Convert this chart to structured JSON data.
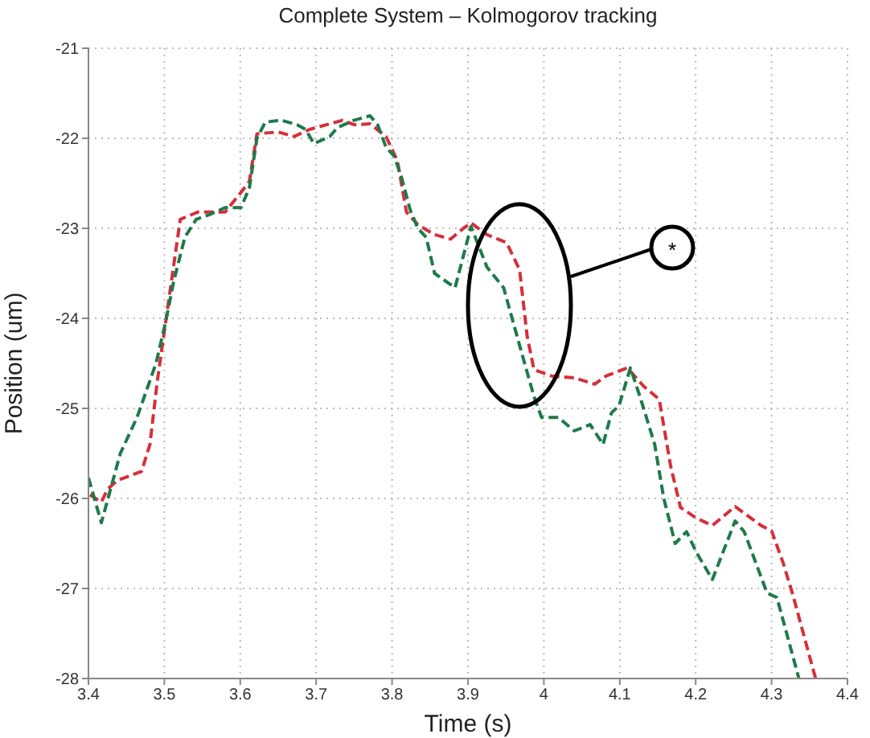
{
  "chart_data": {
    "type": "line",
    "title": "Complete System – Kolmogorov tracking",
    "xlabel": "Time (s)",
    "ylabel": "Position (um)",
    "xlim": [
      3.4,
      4.4
    ],
    "xticks": [
      3.4,
      3.5,
      3.6,
      3.7,
      3.8,
      3.9,
      4,
      4.1,
      4.2,
      4.3,
      4.4
    ],
    "ylim": [
      -28,
      -21
    ],
    "yticks": [
      -28,
      -27,
      -26,
      -25,
      -24,
      -23,
      -22,
      -21
    ],
    "grid": true,
    "line_style": "dashed",
    "marker": "none",
    "annotations": [
      "*"
    ],
    "series": [
      {
        "color": "#d62f3a",
        "x": [
          3.402,
          3.417,
          3.425,
          3.438,
          3.47,
          3.481,
          3.491,
          3.51,
          3.521,
          3.544,
          3.58,
          3.601,
          3.612,
          3.622,
          3.65,
          3.671,
          3.692,
          3.735,
          3.75,
          3.771,
          3.792,
          3.807,
          3.819,
          3.834,
          3.856,
          3.877,
          3.894,
          3.904,
          3.925,
          3.951,
          3.968,
          3.978,
          3.987,
          4.01,
          4.04,
          4.067,
          4.082,
          4.11,
          4.131,
          4.152,
          4.167,
          4.18,
          4.201,
          4.222,
          4.252,
          4.286,
          4.3,
          4.315,
          4.328,
          4.347,
          4.358
        ],
        "values": [
          -25.96,
          -26.04,
          -25.9,
          -25.8,
          -25.7,
          -25.4,
          -24.68,
          -23.55,
          -22.9,
          -22.82,
          -22.82,
          -22.6,
          -22.48,
          -21.95,
          -21.93,
          -21.98,
          -21.9,
          -21.8,
          -21.85,
          -21.84,
          -21.98,
          -22.25,
          -22.82,
          -22.96,
          -23.07,
          -23.12,
          -23.0,
          -22.94,
          -23.07,
          -23.16,
          -23.46,
          -24.2,
          -24.57,
          -24.64,
          -24.66,
          -24.73,
          -24.64,
          -24.55,
          -24.75,
          -24.9,
          -25.64,
          -26.1,
          -26.22,
          -26.3,
          -26.09,
          -26.3,
          -26.36,
          -26.71,
          -27.07,
          -27.66,
          -28.0
        ]
      },
      {
        "color": "#1e7a4a",
        "x": [
          3.4,
          3.417,
          3.442,
          3.464,
          3.489,
          3.502,
          3.512,
          3.527,
          3.542,
          3.559,
          3.58,
          3.601,
          3.612,
          3.622,
          3.633,
          3.654,
          3.675,
          3.686,
          3.697,
          3.718,
          3.728,
          3.75,
          3.771,
          3.781,
          3.792,
          3.803,
          3.813,
          3.824,
          3.834,
          3.845,
          3.856,
          3.883,
          3.904,
          3.925,
          3.947,
          3.968,
          3.987,
          3.997,
          4.019,
          4.04,
          4.061,
          4.078,
          4.089,
          4.099,
          4.114,
          4.127,
          4.146,
          4.158,
          4.173,
          4.188,
          4.201,
          4.222,
          4.252,
          4.264,
          4.294,
          4.307,
          4.336
        ],
        "values": [
          -25.77,
          -26.27,
          -25.5,
          -25.1,
          -24.5,
          -24.03,
          -23.6,
          -23.1,
          -22.9,
          -22.85,
          -22.77,
          -22.77,
          -22.55,
          -22.0,
          -21.82,
          -21.8,
          -21.85,
          -21.9,
          -22.06,
          -21.98,
          -21.88,
          -21.8,
          -21.75,
          -21.85,
          -22.1,
          -22.2,
          -22.45,
          -22.8,
          -23.0,
          -23.1,
          -23.5,
          -23.66,
          -22.98,
          -23.43,
          -23.66,
          -24.3,
          -24.87,
          -25.1,
          -25.1,
          -25.25,
          -25.18,
          -25.4,
          -25.05,
          -24.97,
          -24.55,
          -24.88,
          -25.4,
          -26.0,
          -26.5,
          -26.37,
          -26.6,
          -26.9,
          -26.25,
          -26.37,
          -27.05,
          -27.1,
          -28.0
        ]
      }
    ]
  }
}
